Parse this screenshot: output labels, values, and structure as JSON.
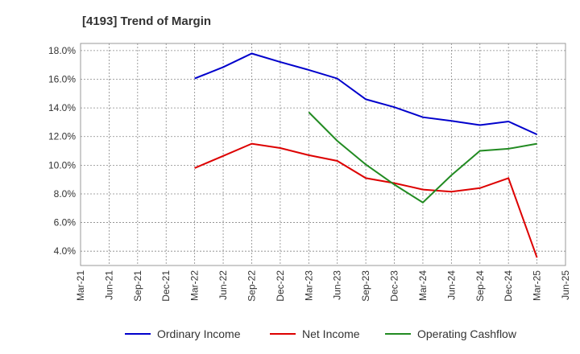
{
  "chart_data": {
    "type": "line",
    "title": "[4193]  Trend of Margin",
    "xlabel": "",
    "ylabel": "",
    "x_ticks": [
      "Mar-21",
      "Jun-21",
      "Sep-21",
      "Dec-21",
      "Mar-22",
      "Jun-22",
      "Sep-22",
      "Dec-22",
      "Mar-23",
      "Jun-23",
      "Sep-23",
      "Dec-23",
      "Mar-24",
      "Jun-24",
      "Sep-24",
      "Dec-24",
      "Mar-25",
      "Jun-25"
    ],
    "y_ticks": [
      "4.0%",
      "6.0%",
      "8.0%",
      "10.0%",
      "12.0%",
      "14.0%",
      "16.0%",
      "18.0%"
    ],
    "y_tick_values": [
      4,
      6,
      8,
      10,
      12,
      14,
      16,
      18
    ],
    "ylim": [
      3,
      18.5
    ],
    "grid": true,
    "legend_position": "bottom",
    "series": [
      {
        "name": "Ordinary Income",
        "color": "#0000cc",
        "values": [
          null,
          null,
          null,
          null,
          16.05,
          16.85,
          17.8,
          17.2,
          16.65,
          16.05,
          14.6,
          14.05,
          13.35,
          13.1,
          12.8,
          13.05,
          12.15
        ]
      },
      {
        "name": "Net Income",
        "color": "#dd0000",
        "values": [
          null,
          null,
          null,
          null,
          9.8,
          10.65,
          11.5,
          11.2,
          10.7,
          10.3,
          9.1,
          8.75,
          8.3,
          8.15,
          8.4,
          9.1,
          3.55
        ]
      },
      {
        "name": "Operating Cashflow",
        "color": "#228b22",
        "values": [
          null,
          null,
          null,
          null,
          null,
          null,
          null,
          null,
          13.7,
          11.7,
          10.05,
          8.65,
          7.4,
          9.3,
          11.0,
          11.15,
          11.5
        ]
      }
    ]
  }
}
